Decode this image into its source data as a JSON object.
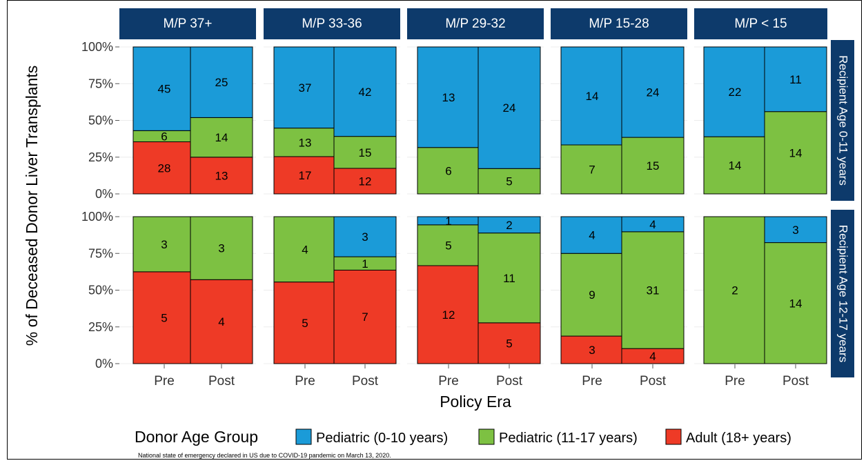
{
  "chart_data": {
    "type": "bar",
    "stacked": true,
    "normalized": true,
    "ylabel": "% of Deceased Donor Liver Transplants",
    "xlabel": "Policy Era",
    "yticks": [
      "0%",
      "25%",
      "50%",
      "75%",
      "100%"
    ],
    "ylim": [
      0,
      100
    ],
    "categories": [
      "Pre",
      "Post"
    ],
    "grid": true,
    "legend": {
      "title": "Donor Age Group",
      "position": "bottom",
      "items": [
        {
          "key": "ped010",
          "label": "Pediatric (0-10 years)",
          "color": "#1B9BD8"
        },
        {
          "key": "ped1117",
          "label": "Pediatric (11-17 years)",
          "color": "#7DC142"
        },
        {
          "key": "adult",
          "label": "Adult (18+ years)",
          "color": "#EE3A26"
        }
      ]
    },
    "stack_order": [
      "adult",
      "ped1117",
      "ped010"
    ],
    "columns": [
      "M/P 37+",
      "M/P 33-36",
      "M/P 29-32",
      "M/P 15-28",
      "M/P < 15"
    ],
    "rows": [
      "Recipient Age 0-11 years",
      "Recipient Age 12-17 years"
    ],
    "panels": [
      [
        {
          "Pre": {
            "adult": 28,
            "ped1117": 6,
            "ped010": 45
          },
          "Post": {
            "adult": 13,
            "ped1117": 14,
            "ped010": 25
          }
        },
        {
          "Pre": {
            "adult": 17,
            "ped1117": 13,
            "ped010": 37
          },
          "Post": {
            "adult": 12,
            "ped1117": 15,
            "ped010": 42
          }
        },
        {
          "Pre": {
            "adult": 0,
            "ped1117": 6,
            "ped010": 13
          },
          "Post": {
            "adult": 0,
            "ped1117": 5,
            "ped010": 24
          }
        },
        {
          "Pre": {
            "adult": 0,
            "ped1117": 7,
            "ped010": 14
          },
          "Post": {
            "adult": 0,
            "ped1117": 15,
            "ped010": 24
          }
        },
        {
          "Pre": {
            "adult": 0,
            "ped1117": 14,
            "ped010": 22
          },
          "Post": {
            "adult": 0,
            "ped1117": 14,
            "ped010": 11
          }
        }
      ],
      [
        {
          "Pre": {
            "adult": 5,
            "ped1117": 3,
            "ped010": 0
          },
          "Post": {
            "adult": 4,
            "ped1117": 3,
            "ped010": 0
          }
        },
        {
          "Pre": {
            "adult": 5,
            "ped1117": 4,
            "ped010": 0
          },
          "Post": {
            "adult": 7,
            "ped1117": 1,
            "ped010": 3
          }
        },
        {
          "Pre": {
            "adult": 12,
            "ped1117": 5,
            "ped010": 1
          },
          "Post": {
            "adult": 5,
            "ped1117": 11,
            "ped010": 2
          }
        },
        {
          "Pre": {
            "adult": 3,
            "ped1117": 9,
            "ped010": 4
          },
          "Post": {
            "adult": 4,
            "ped1117": 31,
            "ped010": 4
          }
        },
        {
          "Pre": {
            "adult": 0,
            "ped1117": 2,
            "ped010": 0
          },
          "Post": {
            "adult": 0,
            "ped1117": 14,
            "ped010": 3
          }
        }
      ]
    ],
    "strip_color": "#0D3A6B"
  },
  "footnote": "National state of emergency declared in US due to COVID-19 pandemic on March 13, 2020."
}
